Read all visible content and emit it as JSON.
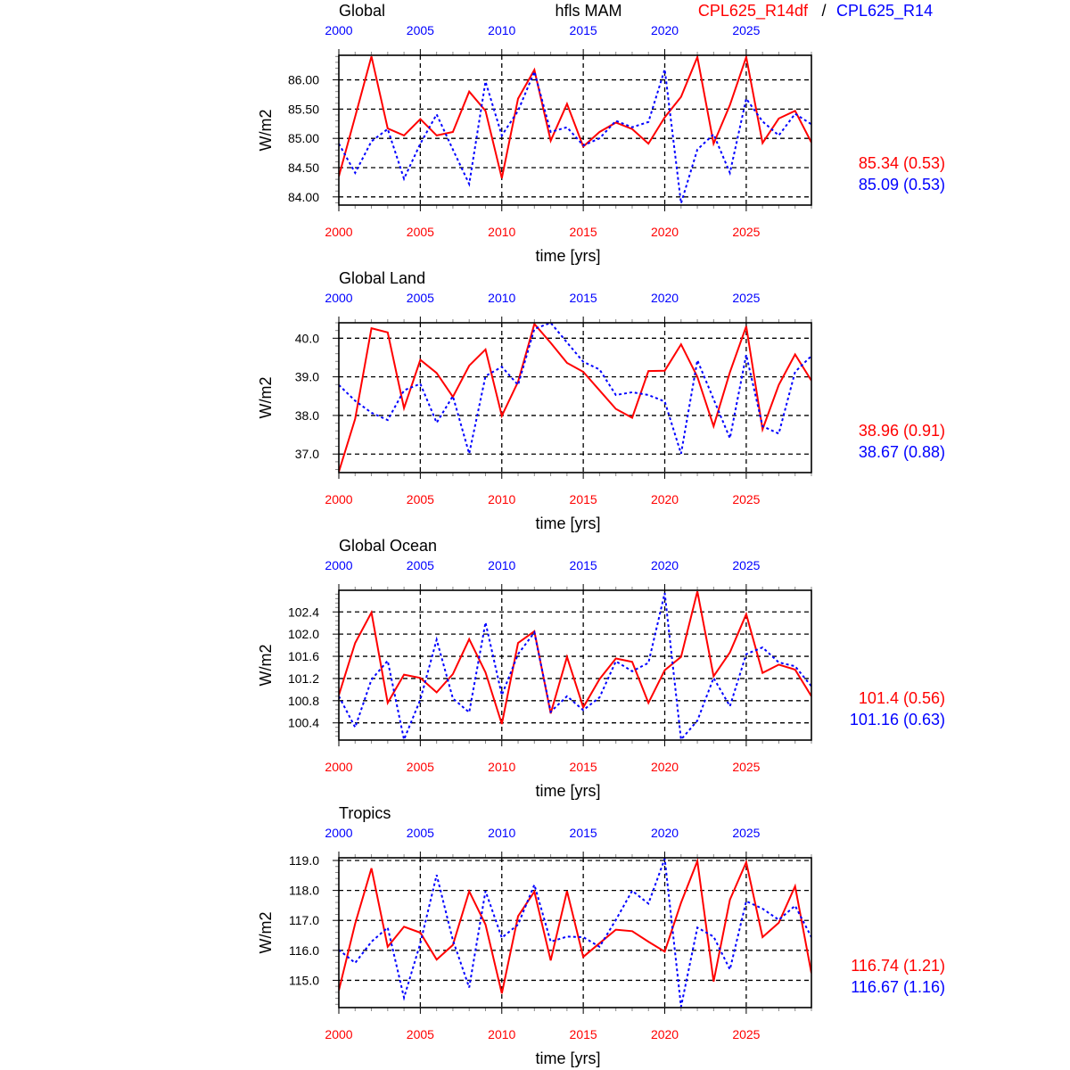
{
  "header": {
    "variable": "hfls MAM",
    "series1_name": "CPL625_R14df",
    "separator": "/",
    "series2_name": "CPL625_R14"
  },
  "colors": {
    "series1": "#ff0000",
    "series2": "#0000ff",
    "axis": "#000000"
  },
  "chart_data": [
    {
      "type": "line",
      "title": "Global",
      "xlabel": "time [yrs]",
      "ylabel": "W/m2",
      "x": [
        2000,
        2001,
        2002,
        2003,
        2004,
        2005,
        2006,
        2007,
        2008,
        2009,
        2010,
        2011,
        2012,
        2013,
        2014,
        2015,
        2016,
        2017,
        2018,
        2019,
        2020,
        2021,
        2022,
        2023,
        2024,
        2025,
        2026,
        2027,
        2028,
        2029
      ],
      "xticks": [
        2000,
        2005,
        2010,
        2015,
        2020,
        2025
      ],
      "xlim": [
        2000,
        2029
      ],
      "ylim": [
        83.86,
        86.42
      ],
      "yticks": [
        "84.00",
        "84.50",
        "85.00",
        "85.50",
        "86.00"
      ],
      "ytick_values": [
        84.0,
        84.5,
        85.0,
        85.5,
        86.0
      ],
      "grid": true,
      "series": [
        {
          "name": "CPL625_R14df",
          "style": "solid",
          "stat": "85.34 (0.53)",
          "values": [
            84.35,
            85.37,
            86.4,
            85.17,
            85.05,
            85.33,
            85.05,
            85.11,
            85.8,
            85.47,
            84.32,
            85.68,
            86.17,
            84.96,
            85.59,
            84.86,
            85.11,
            85.27,
            85.16,
            84.91,
            85.36,
            85.71,
            86.39,
            84.91,
            85.57,
            86.39,
            84.92,
            85.34,
            85.47,
            84.93
          ]
        },
        {
          "name": "CPL625_R14",
          "style": "dotted",
          "stat": "85.09 (0.53)",
          "values": [
            84.91,
            84.41,
            84.95,
            85.16,
            84.31,
            84.91,
            85.41,
            84.81,
            84.22,
            85.97,
            85.05,
            85.47,
            86.14,
            85.11,
            85.19,
            84.88,
            85.0,
            85.3,
            85.19,
            85.28,
            86.18,
            83.89,
            84.81,
            85.07,
            84.41,
            85.68,
            85.29,
            85.05,
            85.42,
            85.24
          ]
        }
      ]
    },
    {
      "type": "line",
      "title": "Global Land",
      "xlabel": "time [yrs]",
      "ylabel": "W/m2",
      "x": [
        2000,
        2001,
        2002,
        2003,
        2004,
        2005,
        2006,
        2007,
        2008,
        2009,
        2010,
        2011,
        2012,
        2013,
        2014,
        2015,
        2016,
        2017,
        2018,
        2019,
        2020,
        2021,
        2022,
        2023,
        2024,
        2025,
        2026,
        2027,
        2028,
        2029
      ],
      "xticks": [
        2000,
        2005,
        2010,
        2015,
        2020,
        2025
      ],
      "xlim": [
        2000,
        2029
      ],
      "ylim": [
        36.52,
        40.4
      ],
      "yticks": [
        "37.0",
        "38.0",
        "39.0",
        "40.0"
      ],
      "ytick_values": [
        37.0,
        38.0,
        39.0,
        40.0
      ],
      "grid": true,
      "series": [
        {
          "name": "CPL625_R14df",
          "style": "solid",
          "stat": "38.96 (0.91)",
          "values": [
            36.54,
            37.91,
            40.26,
            40.15,
            38.19,
            39.44,
            39.1,
            38.48,
            39.29,
            39.71,
            37.99,
            38.87,
            40.37,
            39.88,
            39.36,
            39.13,
            38.65,
            38.17,
            37.94,
            39.15,
            39.16,
            39.84,
            39.0,
            37.72,
            39.12,
            40.31,
            37.64,
            38.79,
            39.58,
            38.9
          ]
        },
        {
          "name": "CPL625_R14",
          "style": "dotted",
          "stat": "38.67 (0.88)",
          "values": [
            38.79,
            38.38,
            38.07,
            37.88,
            38.65,
            38.82,
            37.81,
            38.5,
            37.01,
            39.02,
            39.26,
            38.79,
            40.24,
            40.4,
            39.89,
            39.39,
            39.19,
            38.53,
            38.6,
            38.53,
            38.36,
            37.01,
            39.43,
            38.42,
            37.41,
            39.57,
            37.72,
            37.53,
            39.13,
            39.54
          ]
        }
      ]
    },
    {
      "type": "line",
      "title": "Global Ocean",
      "xlabel": "time [yrs]",
      "ylabel": "W/m2",
      "x": [
        2000,
        2001,
        2002,
        2003,
        2004,
        2005,
        2006,
        2007,
        2008,
        2009,
        2010,
        2011,
        2012,
        2013,
        2014,
        2015,
        2016,
        2017,
        2018,
        2019,
        2020,
        2021,
        2022,
        2023,
        2024,
        2025,
        2026,
        2027,
        2028,
        2029
      ],
      "xticks": [
        2000,
        2005,
        2010,
        2015,
        2020,
        2025
      ],
      "xlim": [
        2000,
        2029
      ],
      "ylim": [
        100.09,
        102.79
      ],
      "yticks": [
        "100.4",
        "100.8",
        "101.2",
        "101.6",
        "102.0",
        "102.4"
      ],
      "ytick_values": [
        100.4,
        100.8,
        101.2,
        101.6,
        102.0,
        102.4
      ],
      "grid": true,
      "series": [
        {
          "name": "CPL625_R14df",
          "style": "solid",
          "stat": "101.4 (0.56)",
          "values": [
            100.9,
            101.84,
            102.39,
            100.76,
            101.27,
            101.21,
            100.95,
            101.28,
            101.91,
            101.31,
            100.38,
            101.84,
            102.05,
            100.57,
            101.59,
            100.68,
            101.19,
            101.56,
            101.5,
            100.76,
            101.35,
            101.59,
            102.77,
            101.24,
            101.67,
            102.36,
            101.3,
            101.45,
            101.36,
            100.88
          ]
        },
        {
          "name": "CPL625_R14",
          "style": "dotted",
          "stat": "101.16 (0.63)",
          "values": [
            100.88,
            100.32,
            101.18,
            101.52,
            100.1,
            100.82,
            101.9,
            100.84,
            100.59,
            102.21,
            100.9,
            101.64,
            102.03,
            100.6,
            100.88,
            100.63,
            100.86,
            101.51,
            101.33,
            101.48,
            102.74,
            100.1,
            100.44,
            101.21,
            100.7,
            101.64,
            101.76,
            101.49,
            101.42,
            101.06
          ]
        }
      ]
    },
    {
      "type": "line",
      "title": "Tropics",
      "xlabel": "time [yrs]",
      "ylabel": "W/m2",
      "x": [
        2000,
        2001,
        2002,
        2003,
        2004,
        2005,
        2006,
        2007,
        2008,
        2009,
        2010,
        2011,
        2012,
        2013,
        2014,
        2015,
        2016,
        2017,
        2018,
        2019,
        2020,
        2021,
        2022,
        2023,
        2024,
        2025,
        2026,
        2027,
        2028,
        2029
      ],
      "xticks": [
        2000,
        2005,
        2010,
        2015,
        2020,
        2025
      ],
      "xlim": [
        2000,
        2029
      ],
      "ylim": [
        114.09,
        119.09
      ],
      "yticks": [
        "115.0",
        "116.0",
        "117.0",
        "118.0",
        "119.0"
      ],
      "ytick_values": [
        115.0,
        116.0,
        117.0,
        118.0,
        119.0
      ],
      "grid": true,
      "series": [
        {
          "name": "CPL625_R14df",
          "style": "solid",
          "stat": "116.74 (1.21)",
          "values": [
            114.66,
            116.89,
            118.74,
            116.12,
            116.79,
            116.59,
            115.69,
            116.18,
            117.97,
            116.86,
            114.56,
            117.14,
            117.96,
            115.66,
            117.98,
            115.78,
            116.24,
            116.69,
            116.64,
            116.29,
            115.96,
            117.59,
            118.98,
            114.96,
            117.69,
            118.94,
            116.44,
            116.92,
            118.14,
            115.24
          ]
        },
        {
          "name": "CPL625_R14",
          "style": "dotted",
          "stat": "116.67 (1.16)",
          "values": [
            116.02,
            115.58,
            116.29,
            116.76,
            114.42,
            116.24,
            118.52,
            116.34,
            114.76,
            117.98,
            116.42,
            116.86,
            118.19,
            116.29,
            116.46,
            116.44,
            116.12,
            117.02,
            117.99,
            117.56,
            119.06,
            114.12,
            116.76,
            116.46,
            115.36,
            117.64,
            117.39,
            117.02,
            117.49,
            116.44
          ]
        }
      ]
    }
  ]
}
